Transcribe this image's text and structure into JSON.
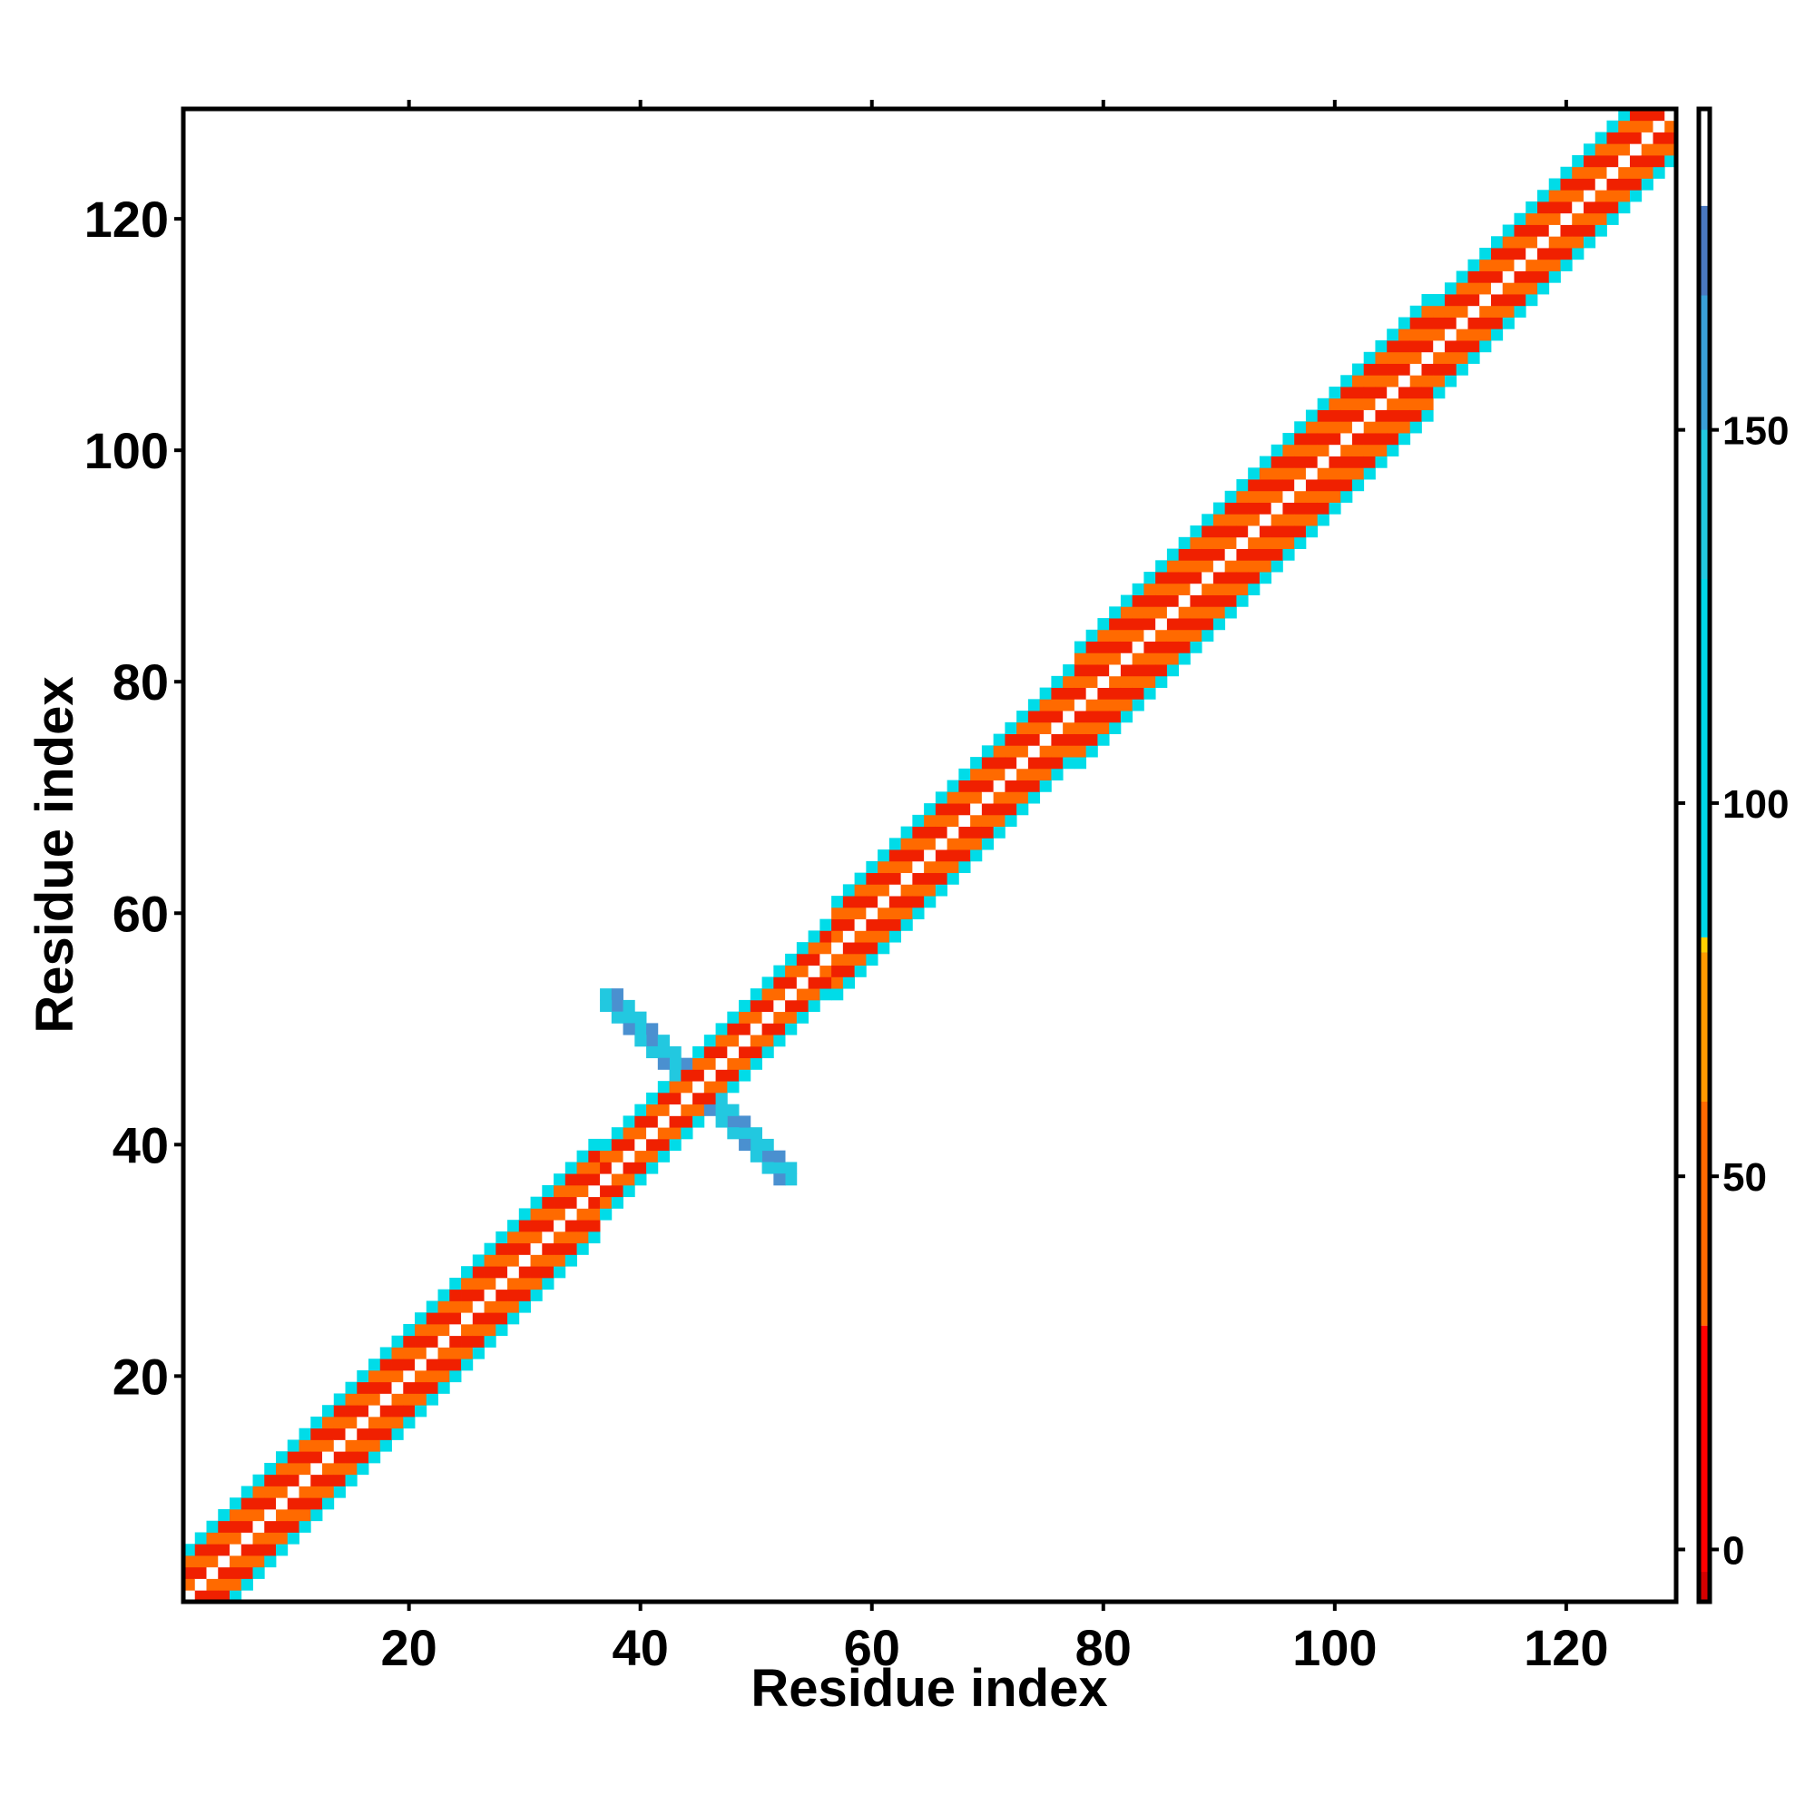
{
  "chart_data": {
    "type": "heatmap",
    "title": "",
    "xlabel": "Residue index",
    "ylabel": "Residue index",
    "xlim": [
      0.5,
      129.5
    ],
    "ylim": [
      0.5,
      129.5
    ],
    "x_ticks": [
      {
        "value": 20,
        "label": "20"
      },
      {
        "value": 40,
        "label": "40"
      },
      {
        "value": 60,
        "label": "60"
      },
      {
        "value": 80,
        "label": "80"
      },
      {
        "value": 100,
        "label": "100"
      },
      {
        "value": 120,
        "label": "120"
      }
    ],
    "y_ticks": [
      {
        "value": 20,
        "label": "20"
      },
      {
        "value": 40,
        "label": "40"
      },
      {
        "value": 60,
        "label": "60"
      },
      {
        "value": 80,
        "label": "80"
      },
      {
        "value": 100,
        "label": "100"
      },
      {
        "value": 120,
        "label": "120"
      }
    ],
    "grid": false,
    "legend": "none",
    "colorbar": {
      "range": [
        -7,
        193
      ],
      "ticks": [
        {
          "value": 0,
          "label": "0"
        },
        {
          "value": 50,
          "label": "50"
        },
        {
          "value": 100,
          "label": "100"
        },
        {
          "value": 150,
          "label": "150"
        }
      ],
      "segments": [
        {
          "from": -7,
          "to": 30,
          "color": "#ff0000"
        },
        {
          "from": 30,
          "to": 80,
          "color": "#ff6a00"
        },
        {
          "from": 80,
          "to": 180,
          "color": "#00d8e8"
        },
        {
          "from": 180,
          "to": 193,
          "color": "#ffffff"
        }
      ],
      "accents": [
        {
          "from": -7,
          "to": -3,
          "color": "#d40000"
        },
        {
          "from": 60,
          "to": 80,
          "color": "#ff9a00"
        },
        {
          "from": 80,
          "to": 82,
          "color": "#ffd000"
        },
        {
          "from": 130,
          "to": 150,
          "color": "#22c8e0"
        },
        {
          "from": 150,
          "to": 168,
          "color": "#3aa0d8"
        },
        {
          "from": 168,
          "to": 180,
          "color": "#4a78c0"
        }
      ]
    },
    "palette": {
      "red": "#f02000",
      "orange": "#ff6a00",
      "amber": "#ff9a00",
      "cyan": "#00dce8",
      "sky": "#22c8e0",
      "steel": "#4a90d0",
      "white": "#ffffff"
    },
    "matrix": {
      "size": 129,
      "diagonal_value": 180,
      "description_of_pattern": null,
      "bands": [
        {
          "from_residue": 1,
          "to_residue": 36,
          "half_width": 4,
          "near_values": [
            40,
            10
          ],
          "far_value": 120
        },
        {
          "from_residue": 36,
          "to_residue": 56,
          "half_width": 3,
          "near_values": [
            10,
            40
          ],
          "far_value": 120
        },
        {
          "from_residue": 56,
          "to_residue": 77,
          "half_width": 4,
          "near_values": [
            40,
            10
          ],
          "far_value": 120
        },
        {
          "from_residue": 77,
          "to_residue": 108,
          "half_width": 5,
          "near_values": [
            40,
            10
          ],
          "far_value": 120
        },
        {
          "from_residue": 108,
          "to_residue": 129,
          "half_width": 4,
          "near_values": [
            40,
            10
          ],
          "far_value": 120
        }
      ],
      "cross": {
        "center_i": 45,
        "center_j": 45,
        "arm_length": 8,
        "values": [
          150,
          165,
          140
        ]
      }
    }
  }
}
